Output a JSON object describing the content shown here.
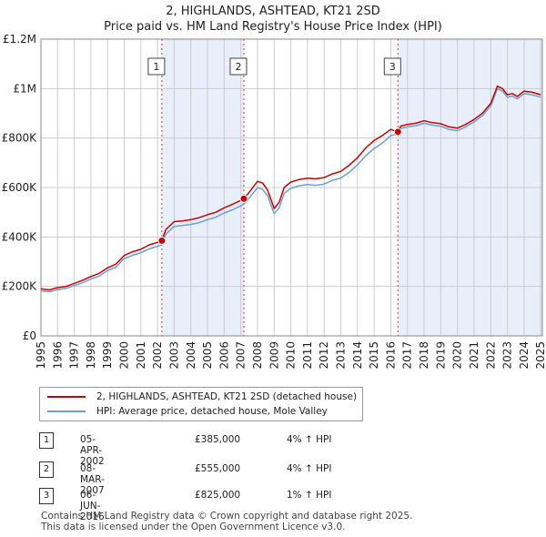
{
  "chart_data": {
    "type": "line",
    "title": "2, HIGHLANDS, ASHTEAD, KT21 2SD",
    "subtitle": "Price paid vs. HM Land Registry's House Price Index (HPI)",
    "xlim": [
      1995,
      2025.1
    ],
    "ylim": [
      0,
      1200000
    ],
    "x_ticks": [
      "1995",
      "1996",
      "1997",
      "1998",
      "1999",
      "2000",
      "2001",
      "2002",
      "2003",
      "2004",
      "2005",
      "2006",
      "2007",
      "2008",
      "2009",
      "2010",
      "2011",
      "2012",
      "2013",
      "2014",
      "2015",
      "2016",
      "2017",
      "2018",
      "2019",
      "2020",
      "2021",
      "2022",
      "2023",
      "2024",
      "2025"
    ],
    "y_ticks": [
      {
        "value": 0,
        "label": "£0"
      },
      {
        "value": 200000,
        "label": "£200K"
      },
      {
        "value": 400000,
        "label": "£400K"
      },
      {
        "value": 600000,
        "label": "£600K"
      },
      {
        "value": 800000,
        "label": "£800K"
      },
      {
        "value": 1000000,
        "label": "£1M"
      },
      {
        "value": 1200000,
        "label": "£1.2M"
      }
    ],
    "grid": true,
    "series": [
      {
        "name": "2, HIGHLANDS, ASHTEAD, KT21 2SD (detached house)",
        "color": "#cc0000",
        "x": [
          1995.0,
          1995.5,
          1996.0,
          1996.5,
          1997.0,
          1997.5,
          1998.0,
          1998.5,
          1999.0,
          1999.5,
          2000.0,
          2000.5,
          2001.0,
          2001.5,
          2002.0,
          2002.26,
          2002.5,
          2003.0,
          2003.5,
          2004.0,
          2004.5,
          2005.0,
          2005.5,
          2006.0,
          2006.5,
          2007.0,
          2007.18,
          2007.5,
          2008.0,
          2008.3,
          2008.6,
          2009.0,
          2009.3,
          2009.6,
          2010.0,
          2010.5,
          2011.0,
          2011.5,
          2012.0,
          2012.5,
          2013.0,
          2013.5,
          2014.0,
          2014.5,
          2015.0,
          2015.5,
          2016.0,
          2016.43,
          2016.6,
          2017.0,
          2017.5,
          2018.0,
          2018.5,
          2019.0,
          2019.5,
          2020.0,
          2020.5,
          2021.0,
          2021.5,
          2022.0,
          2022.4,
          2022.7,
          2023.0,
          2023.3,
          2023.6,
          2024.0,
          2024.5,
          2025.0
        ],
        "values": [
          190000,
          186000,
          195000,
          200000,
          212000,
          225000,
          240000,
          253000,
          275000,
          290000,
          325000,
          340000,
          350000,
          368000,
          378000,
          385000,
          430000,
          462000,
          465000,
          470000,
          478000,
          490000,
          500000,
          518000,
          532000,
          548000,
          555000,
          580000,
          625000,
          618000,
          590000,
          515000,
          540000,
          600000,
          622000,
          632000,
          638000,
          635000,
          640000,
          655000,
          665000,
          690000,
          720000,
          760000,
          790000,
          810000,
          835000,
          825000,
          848000,
          855000,
          860000,
          870000,
          862000,
          858000,
          845000,
          840000,
          855000,
          875000,
          900000,
          940000,
          1010000,
          1000000,
          975000,
          980000,
          968000,
          990000,
          985000,
          975000
        ]
      },
      {
        "name": "HPI: Average price, detached house, Mole Valley",
        "color": "#6a9fd8",
        "x": [
          1995.0,
          1995.5,
          1996.0,
          1996.5,
          1997.0,
          1997.5,
          1998.0,
          1998.5,
          1999.0,
          1999.5,
          2000.0,
          2000.5,
          2001.0,
          2001.5,
          2002.0,
          2002.26,
          2002.5,
          2003.0,
          2003.5,
          2004.0,
          2004.5,
          2005.0,
          2005.5,
          2006.0,
          2006.5,
          2007.0,
          2007.18,
          2007.5,
          2008.0,
          2008.3,
          2008.6,
          2009.0,
          2009.3,
          2009.6,
          2010.0,
          2010.5,
          2011.0,
          2011.5,
          2012.0,
          2012.5,
          2013.0,
          2013.5,
          2014.0,
          2014.5,
          2015.0,
          2015.5,
          2016.0,
          2016.43,
          2016.6,
          2017.0,
          2017.5,
          2018.0,
          2018.5,
          2019.0,
          2019.5,
          2020.0,
          2020.5,
          2021.0,
          2021.5,
          2022.0,
          2022.4,
          2022.7,
          2023.0,
          2023.3,
          2023.6,
          2024.0,
          2024.5,
          2025.0
        ],
        "values": [
          182000,
          178000,
          187000,
          192000,
          203000,
          215000,
          230000,
          242000,
          264000,
          278000,
          312000,
          326000,
          336000,
          352000,
          362000,
          370000,
          412000,
          443000,
          446000,
          451000,
          458000,
          470000,
          480000,
          497000,
          510000,
          526000,
          533000,
          557000,
          600000,
          593000,
          567000,
          494000,
          518000,
          576000,
          597000,
          607000,
          612000,
          609000,
          614000,
          629000,
          638000,
          662000,
          691000,
          729000,
          758000,
          780000,
          810000,
          816000,
          838000,
          845000,
          850000,
          860000,
          852000,
          848000,
          835000,
          830000,
          845000,
          865000,
          890000,
          930000,
          1000000,
          990000,
          965000,
          970000,
          958000,
          980000,
          975000,
          965000
        ]
      }
    ],
    "sales": [
      {
        "label": "1",
        "x": 2002.26,
        "value": 385000
      },
      {
        "label": "2",
        "x": 2007.18,
        "value": 555000
      },
      {
        "label": "3",
        "x": 2016.43,
        "value": 825000
      }
    ],
    "shaded_ranges": [
      [
        2002.26,
        2007.18
      ],
      [
        2016.43,
        2025.1
      ]
    ]
  },
  "legend": {
    "property_label": "2, HIGHLANDS, ASHTEAD, KT21 2SD (detached house)",
    "hpi_label": "HPI: Average price, detached house, Mole Valley"
  },
  "transactions": [
    {
      "num": "1",
      "date": "05-APR-2002",
      "price": "£385,000",
      "hpi": "4% ↑ HPI"
    },
    {
      "num": "2",
      "date": "08-MAR-2007",
      "price": "£555,000",
      "hpi": "4% ↑ HPI"
    },
    {
      "num": "3",
      "date": "06-JUN-2016",
      "price": "£825,000",
      "hpi": "1% ↑ HPI"
    }
  ],
  "footer": {
    "line1": "Contains HM Land Registry data © Crown copyright and database right 2025.",
    "line2": "This data is licensed under the Open Government Licence v3.0."
  }
}
